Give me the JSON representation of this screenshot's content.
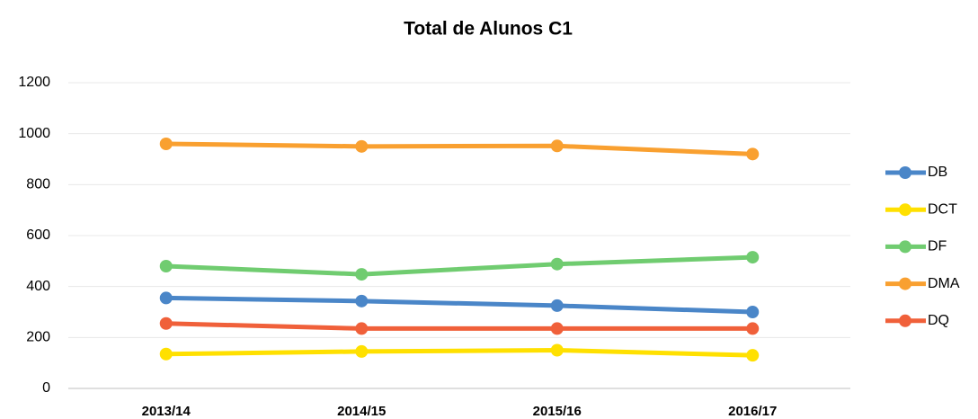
{
  "chart_data": {
    "type": "line",
    "title": "Total de Alunos C1",
    "categories": [
      "2013/14",
      "2014/15",
      "2015/16",
      "2016/17"
    ],
    "series": [
      {
        "name": "DB",
        "color": "#4a86c8",
        "values": [
          355,
          343,
          325,
          300
        ]
      },
      {
        "name": "DCT",
        "color": "#ffe000",
        "values": [
          135,
          145,
          150,
          130
        ]
      },
      {
        "name": "DF",
        "color": "#70cc70",
        "values": [
          480,
          448,
          488,
          515
        ]
      },
      {
        "name": "DMA",
        "color": "#f9a030",
        "values": [
          960,
          950,
          952,
          920
        ]
      },
      {
        "name": "DQ",
        "color": "#f0603a",
        "values": [
          255,
          235,
          235,
          235
        ]
      }
    ],
    "ylim": [
      0,
      1200
    ],
    "yticks": [
      0,
      200,
      400,
      600,
      800,
      1000,
      1200
    ],
    "grid": true,
    "legend": "right"
  }
}
